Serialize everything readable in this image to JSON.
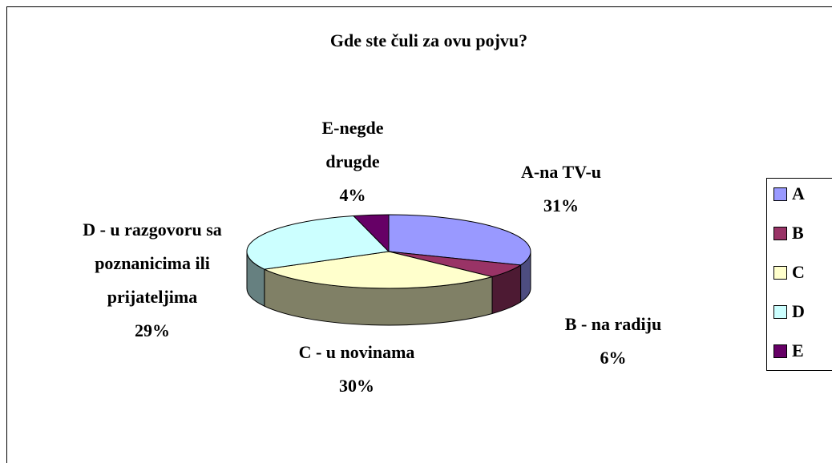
{
  "chart_data": {
    "type": "pie3d",
    "title": "Gde ste čuli za ovu pojvu?",
    "categories": [
      "A",
      "B",
      "C",
      "D",
      "E"
    ],
    "labels": [
      "A-na TV-u",
      "B - na radiju",
      "C - u novinama",
      "D - u razgovoru sa poznanicima ili prijateljima",
      "E-negde drugde"
    ],
    "values": [
      31,
      6,
      30,
      29,
      4
    ],
    "value_labels": [
      "31%",
      "6%",
      "30%",
      "29%",
      "4%"
    ],
    "colors": [
      "#9999ff",
      "#993366",
      "#ffffcc",
      "#ccffff",
      "#660066"
    ],
    "legend": "right"
  }
}
